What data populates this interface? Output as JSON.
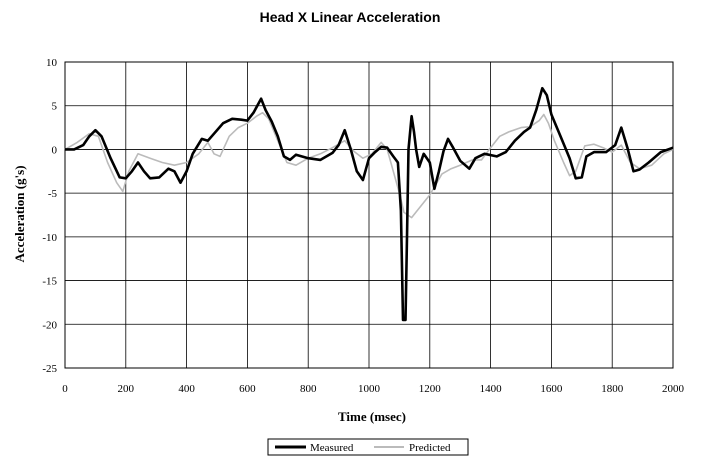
{
  "chart_data": {
    "type": "line",
    "title": "Head X Linear Acceleration",
    "xlabel": "Time (msec)",
    "ylabel": "Acceleration (g's)",
    "xlim": [
      0,
      2000
    ],
    "ylim": [
      -25,
      10
    ],
    "xticks": [
      0,
      200,
      400,
      600,
      800,
      1000,
      1200,
      1400,
      1600,
      1800,
      2000
    ],
    "yticks": [
      10,
      5,
      0,
      -5,
      -10,
      -15,
      -20,
      -25
    ],
    "grid": true,
    "legend_position": "bottom",
    "series": [
      {
        "name": "Measured",
        "color": "#000000",
        "points": [
          [
            0,
            0
          ],
          [
            30,
            0
          ],
          [
            60,
            0.5
          ],
          [
            80,
            1.5
          ],
          [
            100,
            2.2
          ],
          [
            120,
            1.5
          ],
          [
            150,
            -1
          ],
          [
            180,
            -3.2
          ],
          [
            200,
            -3.3
          ],
          [
            220,
            -2.5
          ],
          [
            240,
            -1.5
          ],
          [
            260,
            -2.5
          ],
          [
            280,
            -3.3
          ],
          [
            310,
            -3.2
          ],
          [
            340,
            -2.2
          ],
          [
            360,
            -2.5
          ],
          [
            380,
            -3.8
          ],
          [
            400,
            -2.5
          ],
          [
            420,
            -0.5
          ],
          [
            450,
            1.2
          ],
          [
            470,
            1
          ],
          [
            490,
            1.8
          ],
          [
            520,
            3
          ],
          [
            550,
            3.5
          ],
          [
            580,
            3.4
          ],
          [
            600,
            3.3
          ],
          [
            620,
            4.2
          ],
          [
            645,
            5.8
          ],
          [
            660,
            4.5
          ],
          [
            680,
            3.2
          ],
          [
            700,
            1.5
          ],
          [
            720,
            -0.8
          ],
          [
            740,
            -1.2
          ],
          [
            760,
            -0.6
          ],
          [
            800,
            -1
          ],
          [
            840,
            -1.2
          ],
          [
            880,
            -0.4
          ],
          [
            900,
            0.5
          ],
          [
            920,
            2.2
          ],
          [
            940,
            0
          ],
          [
            960,
            -2.5
          ],
          [
            980,
            -3.5
          ],
          [
            1000,
            -1
          ],
          [
            1020,
            -0.3
          ],
          [
            1040,
            0.3
          ],
          [
            1060,
            0.2
          ],
          [
            1080,
            -0.8
          ],
          [
            1095,
            -1.5
          ],
          [
            1105,
            -7
          ],
          [
            1112,
            -19.5
          ],
          [
            1120,
            -19.5
          ],
          [
            1125,
            -10
          ],
          [
            1130,
            0
          ],
          [
            1140,
            3.8
          ],
          [
            1148,
            2
          ],
          [
            1155,
            0
          ],
          [
            1165,
            -2
          ],
          [
            1180,
            -0.5
          ],
          [
            1200,
            -1.5
          ],
          [
            1215,
            -4.5
          ],
          [
            1230,
            -2.5
          ],
          [
            1245,
            -0.2
          ],
          [
            1260,
            1.2
          ],
          [
            1275,
            0.3
          ],
          [
            1300,
            -1.3
          ],
          [
            1330,
            -2.2
          ],
          [
            1350,
            -1
          ],
          [
            1380,
            -0.5
          ],
          [
            1420,
            -0.8
          ],
          [
            1450,
            -0.3
          ],
          [
            1480,
            1
          ],
          [
            1510,
            2
          ],
          [
            1530,
            2.5
          ],
          [
            1550,
            4.5
          ],
          [
            1570,
            7
          ],
          [
            1585,
            6.2
          ],
          [
            1600,
            4
          ],
          [
            1630,
            1.5
          ],
          [
            1660,
            -1
          ],
          [
            1680,
            -3.3
          ],
          [
            1700,
            -3.2
          ],
          [
            1715,
            -0.8
          ],
          [
            1740,
            -0.3
          ],
          [
            1780,
            -0.3
          ],
          [
            1810,
            0.5
          ],
          [
            1830,
            2.5
          ],
          [
            1850,
            0.2
          ],
          [
            1870,
            -2.5
          ],
          [
            1890,
            -2.3
          ],
          [
            1920,
            -1.5
          ],
          [
            1960,
            -0.3
          ],
          [
            2000,
            0.2
          ]
        ]
      },
      {
        "name": "Predicted",
        "color": "#bbbbbb",
        "points": [
          [
            0,
            0
          ],
          [
            40,
            0.8
          ],
          [
            80,
            1.8
          ],
          [
            110,
            1.5
          ],
          [
            140,
            -1.5
          ],
          [
            170,
            -3.8
          ],
          [
            190,
            -4.8
          ],
          [
            210,
            -2.5
          ],
          [
            240,
            -0.5
          ],
          [
            280,
            -1
          ],
          [
            320,
            -1.5
          ],
          [
            360,
            -1.8
          ],
          [
            400,
            -1.5
          ],
          [
            440,
            -0.5
          ],
          [
            470,
            0.8
          ],
          [
            490,
            -0.5
          ],
          [
            510,
            -0.8
          ],
          [
            540,
            1.5
          ],
          [
            570,
            2.5
          ],
          [
            600,
            3
          ],
          [
            630,
            3.8
          ],
          [
            650,
            4.2
          ],
          [
            670,
            3.5
          ],
          [
            700,
            1
          ],
          [
            730,
            -1.5
          ],
          [
            760,
            -1.8
          ],
          [
            800,
            -1
          ],
          [
            840,
            -0.5
          ],
          [
            880,
            0.2
          ],
          [
            920,
            1
          ],
          [
            950,
            -0.2
          ],
          [
            980,
            -1
          ],
          [
            1010,
            -0.5
          ],
          [
            1040,
            0.8
          ],
          [
            1060,
            0
          ],
          [
            1080,
            -2.5
          ],
          [
            1100,
            -5
          ],
          [
            1115,
            -7.2
          ],
          [
            1140,
            -7.8
          ],
          [
            1170,
            -6.5
          ],
          [
            1200,
            -5.2
          ],
          [
            1240,
            -2.8
          ],
          [
            1270,
            -2.2
          ],
          [
            1300,
            -1.8
          ],
          [
            1340,
            -1.2
          ],
          [
            1370,
            -1.2
          ],
          [
            1400,
            0.2
          ],
          [
            1430,
            1.5
          ],
          [
            1460,
            2
          ],
          [
            1500,
            2.5
          ],
          [
            1530,
            2.6
          ],
          [
            1560,
            3.3
          ],
          [
            1575,
            4
          ],
          [
            1590,
            3
          ],
          [
            1610,
            1
          ],
          [
            1640,
            -1.5
          ],
          [
            1660,
            -3
          ],
          [
            1680,
            -2.5
          ],
          [
            1710,
            0.4
          ],
          [
            1740,
            0.6
          ],
          [
            1770,
            0.2
          ],
          [
            1800,
            -0.3
          ],
          [
            1830,
            0.5
          ],
          [
            1860,
            -1.5
          ],
          [
            1890,
            -2.2
          ],
          [
            1930,
            -1.8
          ],
          [
            1970,
            -0.5
          ],
          [
            2000,
            0
          ]
        ]
      }
    ]
  }
}
